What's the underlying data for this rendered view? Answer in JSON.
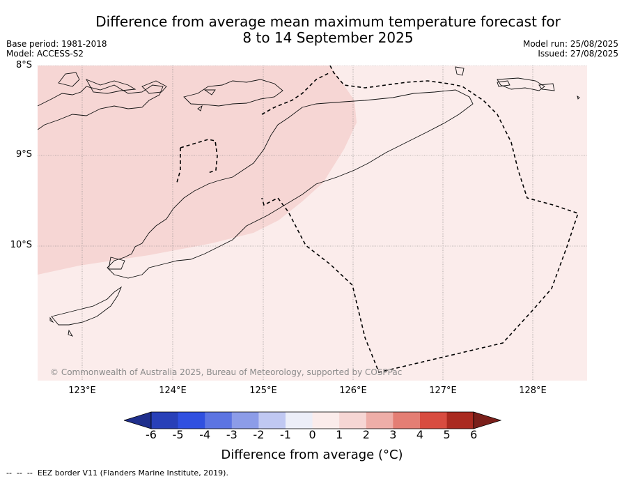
{
  "title_line1": "Difference from average mean maximum temperature forecast for",
  "title_line2": "8 to 14 September 2025",
  "base_period": "Base period: 1981-2018",
  "model": "Model: ACCESS-S2",
  "model_run": "Model run: 25/08/2025",
  "issued": "Issued: 27/08/2025",
  "lat_labels": [
    "8°S",
    "9°S",
    "10°S"
  ],
  "lon_labels": [
    "123°E",
    "124°E",
    "125°E",
    "126°E",
    "127°E",
    "128°E"
  ],
  "copyright": "© Commonwealth of Australia 2025, Bureau of Meteorology, supported by COSPPac",
  "colorbar": {
    "ticks": [
      "-6",
      "-5",
      "-4",
      "-3",
      "-2",
      "-1",
      "0",
      "1",
      "2",
      "3",
      "4",
      "5",
      "6"
    ],
    "label": "Difference from average (°C)",
    "colors": [
      "#1f2f8c",
      "#2840b8",
      "#3050e0",
      "#5c74e2",
      "#8c9ce8",
      "#c0c8f2",
      "#eceef8",
      "#fbeceb",
      "#f6d6d4",
      "#eeaea8",
      "#e47e74",
      "#d84c40",
      "#aa2a20",
      "#7a1f1a"
    ]
  },
  "shading": {
    "band_0_to_1": "#fbeceb",
    "band_1_to_2": "#f6d6d4"
  },
  "legend_footer": "EEZ border V11 (Flanders Marine Institute, 2019)."
}
